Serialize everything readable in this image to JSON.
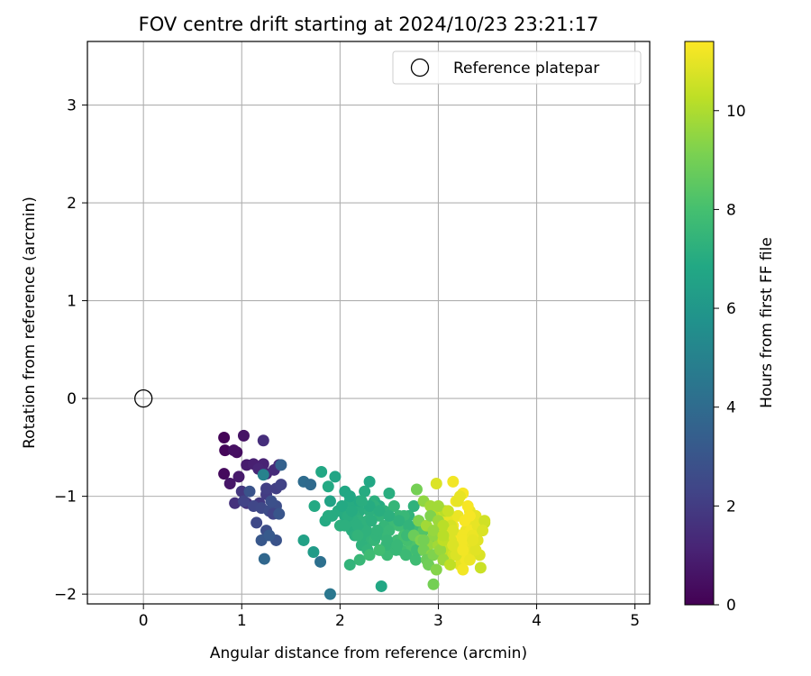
{
  "chart_data": {
    "type": "scatter",
    "title": "FOV centre drift starting at 2024/10/23 23:21:17",
    "xlabel": "Angular distance from reference (arcmin)",
    "ylabel": "Rotation from reference (arcmin)",
    "xlim": [
      -0.57,
      5.15
    ],
    "ylim": [
      -2.1,
      3.65
    ],
    "xticks": [
      0,
      1,
      2,
      3,
      4,
      5
    ],
    "yticks": [
      -2,
      -1,
      0,
      1,
      2,
      3
    ],
    "grid": true,
    "legend": {
      "placement": "top-right",
      "entries": [
        "Reference platepar"
      ]
    },
    "reference_point": {
      "x": 0,
      "y": 0
    },
    "colorbar": {
      "label": "Hours from first FF file",
      "colormap": "viridis",
      "range": [
        0,
        11.4
      ],
      "ticks": [
        0,
        2,
        4,
        6,
        8,
        10
      ]
    },
    "series": [
      {
        "x": [
          0.82,
          0.83,
          0.82,
          0.95,
          0.92,
          1.02,
          0.88,
          0.97,
          1.05,
          1.12,
          1.22,
          1.17,
          1.25,
          1.33,
          1.38,
          0.93,
          1.05,
          1.0,
          1.18,
          1.25,
          1.35,
          1.4,
          1.02,
          1.12,
          1.2,
          1.28,
          1.35,
          1.3,
          1.08,
          1.22,
          1.25,
          1.32,
          1.15,
          1.25,
          1.35,
          1.38,
          1.2,
          1.28,
          1.4,
          1.23
        ],
        "y": [
          -0.4,
          -0.53,
          -0.77,
          -0.55,
          -0.53,
          -0.38,
          -0.87,
          -0.8,
          -0.68,
          -0.67,
          -0.67,
          -0.72,
          -0.77,
          -0.73,
          -0.68,
          -1.07,
          -1.07,
          -0.95,
          -1.07,
          -0.98,
          -0.92,
          -0.88,
          -1.05,
          -1.1,
          -1.12,
          -1.15,
          -1.1,
          -1.05,
          -0.95,
          -0.43,
          -0.92,
          -1.18,
          -1.27,
          -1.35,
          -1.45,
          -1.18,
          -1.45,
          -1.4,
          -0.68,
          -1.64
        ],
        "hours": [
          0.1,
          0.2,
          0.3,
          0.4,
          0.5,
          0.6,
          0.7,
          0.8,
          0.9,
          1.0,
          1.1,
          1.2,
          1.3,
          1.4,
          1.5,
          1.6,
          1.7,
          1.8,
          1.9,
          2.0,
          2.1,
          2.2,
          2.3,
          2.4,
          2.5,
          2.6,
          2.7,
          2.8,
          2.9,
          1.5,
          2.1,
          2.3,
          2.5,
          2.7,
          2.9,
          3.0,
          3.1,
          3.2,
          3.5,
          3.8
        ]
      },
      {
        "x": [
          1.22,
          1.63,
          1.7,
          1.8,
          1.63,
          1.73,
          1.81,
          1.88,
          1.9,
          1.95,
          2.05,
          2.1,
          2.15,
          2.2,
          2.25,
          2.3,
          2.35,
          2.4,
          2.45,
          2.5,
          2.55,
          2.6,
          2.65,
          2.7,
          2.75,
          2.1,
          2.15,
          2.2,
          2.25,
          2.3,
          2.35,
          2.4,
          2.45,
          2.5,
          2.55,
          2.6,
          2.65,
          2.7,
          2.75,
          2.8,
          2.05,
          2.12,
          2.18,
          2.25,
          2.32,
          2.38,
          2.45,
          2.52,
          2.58,
          2.65,
          2.72,
          2.78,
          2.85,
          2.15,
          2.22,
          2.28,
          2.35,
          2.42,
          2.48,
          2.55,
          2.62,
          2.68,
          2.75,
          2.82,
          2.1,
          2.2,
          2.3,
          2.4,
          2.5,
          2.6,
          2.7,
          2.8,
          2.13,
          2.27,
          2.37,
          2.47,
          2.57,
          2.67,
          2.77,
          1.85,
          1.98,
          2.08,
          2.18,
          2.28,
          2.38,
          2.48,
          2.58,
          2.68,
          2.78,
          2.88,
          2.92,
          2.02,
          2.12,
          2.22,
          2.32,
          1.74,
          1.88,
          2.0,
          2.1,
          2.2,
          2.3,
          2.4,
          1.92,
          2.05,
          2.18,
          1.9,
          2.42,
          2.85
        ],
        "y": [
          -0.78,
          -0.85,
          -0.88,
          -1.67,
          -1.45,
          -1.57,
          -0.75,
          -0.9,
          -1.05,
          -0.8,
          -0.95,
          -1.0,
          -1.1,
          -1.15,
          -0.95,
          -0.85,
          -1.05,
          -1.1,
          -1.15,
          -0.97,
          -1.1,
          -1.2,
          -1.25,
          -1.2,
          -1.1,
          -1.05,
          -1.2,
          -1.25,
          -1.3,
          -1.15,
          -1.1,
          -1.2,
          -1.3,
          -1.35,
          -1.25,
          -1.3,
          -1.2,
          -1.35,
          -1.4,
          -1.3,
          -1.2,
          -1.35,
          -1.3,
          -1.4,
          -1.45,
          -1.35,
          -1.4,
          -1.5,
          -1.45,
          -1.4,
          -1.5,
          -1.45,
          -1.35,
          -1.4,
          -1.5,
          -1.55,
          -1.45,
          -1.55,
          -1.6,
          -1.5,
          -1.55,
          -1.45,
          -1.6,
          -1.55,
          -1.0,
          -1.05,
          -1.1,
          -1.15,
          -1.2,
          -1.25,
          -1.3,
          -1.25,
          -1.25,
          -1.35,
          -1.4,
          -1.5,
          -1.55,
          -1.6,
          -1.65,
          -1.25,
          -1.15,
          -1.2,
          -1.3,
          -1.25,
          -1.35,
          -1.45,
          -1.5,
          -1.4,
          -1.55,
          -1.5,
          -1.45,
          -1.1,
          -1.15,
          -1.05,
          -1.25,
          -1.1,
          -1.2,
          -1.3,
          -1.7,
          -1.65,
          -1.6,
          -1.55,
          -1.2,
          -1.3,
          -1.4,
          -2.0,
          -1.92,
          -1.55
        ],
        "hours": [
          5.0,
          4.0,
          3.9,
          4.2,
          6.5,
          6.2,
          6.8,
          6.9,
          6.6,
          6.7,
          6.8,
          6.9,
          7.0,
          7.1,
          7.0,
          6.8,
          7.2,
          7.0,
          7.3,
          7.1,
          7.5,
          7.6,
          7.5,
          7.4,
          7.3,
          7.0,
          7.2,
          7.3,
          7.4,
          7.2,
          7.3,
          7.4,
          7.5,
          7.6,
          7.7,
          7.8,
          7.6,
          7.5,
          7.7,
          7.8,
          7.0,
          7.1,
          7.2,
          7.3,
          7.4,
          7.5,
          7.6,
          7.7,
          7.8,
          8.0,
          8.1,
          8.2,
          8.3,
          7.2,
          7.3,
          7.4,
          7.5,
          7.6,
          7.7,
          7.8,
          7.9,
          8.0,
          8.1,
          8.2,
          6.8,
          6.9,
          7.0,
          7.1,
          7.2,
          7.3,
          7.4,
          7.5,
          7.2,
          7.3,
          7.4,
          7.5,
          7.6,
          7.7,
          7.8,
          6.9,
          7.0,
          7.1,
          7.2,
          7.3,
          7.4,
          7.5,
          7.6,
          7.7,
          7.8,
          8.4,
          8.5,
          6.9,
          7.0,
          7.1,
          7.2,
          6.9,
          7.0,
          7.2,
          7.4,
          7.6,
          7.8,
          7.9,
          7.0,
          7.2,
          7.4,
          4.5,
          6.8,
          8.6
        ]
      },
      {
        "x": [
          2.78,
          2.85,
          2.92,
          2.98,
          3.05,
          3.12,
          3.18,
          3.25,
          3.32,
          3.38,
          2.8,
          2.88,
          2.95,
          3.02,
          3.08,
          3.15,
          3.22,
          3.28,
          3.35,
          3.42,
          2.75,
          2.82,
          2.9,
          2.97,
          3.03,
          3.1,
          3.17,
          3.23,
          3.3,
          3.37,
          2.85,
          2.93,
          3.0,
          3.07,
          3.13,
          3.2,
          3.27,
          3.33,
          3.4,
          3.47,
          2.88,
          2.95,
          3.02,
          3.08,
          3.15,
          3.22,
          3.28,
          3.35,
          3.42,
          2.9,
          2.98,
          3.05,
          3.12,
          3.18,
          3.25,
          3.32,
          3.38,
          2.92,
          3.0,
          3.07,
          3.13,
          3.2,
          3.27,
          3.33,
          3.4,
          3.47,
          3.0,
          3.1,
          3.2,
          3.3,
          3.05,
          3.15,
          3.25,
          2.95,
          3.05,
          3.15,
          3.25,
          3.35,
          3.45,
          2.95,
          3.15,
          3.22,
          2.85,
          2.95,
          3.05,
          3.15,
          3.25,
          3.35,
          3.43,
          3.32
        ],
        "y": [
          -0.93,
          -1.05,
          -1.1,
          -0.87,
          -1.15,
          -1.2,
          -1.05,
          -0.97,
          -1.15,
          -1.2,
          -1.25,
          -1.3,
          -1.2,
          -1.35,
          -1.25,
          -1.3,
          -1.4,
          -1.35,
          -1.25,
          -1.3,
          -1.4,
          -1.45,
          -1.5,
          -1.4,
          -1.45,
          -1.35,
          -1.5,
          -1.45,
          -1.4,
          -1.35,
          -1.55,
          -1.6,
          -1.5,
          -1.55,
          -1.45,
          -1.6,
          -1.55,
          -1.5,
          -1.45,
          -1.27,
          -1.65,
          -1.6,
          -1.55,
          -1.65,
          -1.6,
          -1.7,
          -1.65,
          -1.55,
          -1.6,
          -1.7,
          -1.75,
          -1.65,
          -1.7,
          -1.6,
          -1.75,
          -1.65,
          -1.55,
          -1.2,
          -1.25,
          -1.15,
          -1.3,
          -1.2,
          -1.25,
          -1.35,
          -1.3,
          -1.25,
          -1.1,
          -1.15,
          -1.05,
          -1.1,
          -1.3,
          -1.35,
          -1.4,
          -1.4,
          -1.45,
          -1.5,
          -1.45,
          -1.4,
          -1.35,
          -1.9,
          -0.85,
          -1.0,
          -1.45,
          -1.35,
          -1.4,
          -1.5,
          -1.55,
          -1.45,
          -1.73,
          -1.2
        ],
        "hours": [
          9.0,
          9.5,
          9.8,
          10.8,
          10.5,
          11.0,
          11.2,
          11.3,
          11.1,
          11.0,
          9.2,
          9.8,
          10.2,
          10.8,
          11.0,
          11.2,
          11.3,
          11.1,
          11.0,
          10.8,
          8.8,
          9.2,
          9.6,
          10.2,
          10.6,
          11.0,
          11.2,
          11.3,
          11.2,
          11.0,
          9.0,
          9.4,
          9.8,
          10.4,
          10.8,
          11.2,
          11.3,
          11.1,
          10.9,
          10.4,
          8.8,
          9.2,
          9.6,
          10.0,
          10.6,
          11.0,
          11.2,
          11.0,
          10.8,
          8.9,
          9.3,
          9.7,
          10.3,
          10.8,
          11.2,
          11.1,
          10.9,
          9.2,
          9.7,
          10.2,
          10.7,
          11.1,
          11.3,
          11.2,
          11.0,
          10.6,
          9.8,
          10.5,
          11.0,
          11.3,
          10.2,
          10.8,
          11.2,
          9.5,
          10.3,
          10.9,
          11.2,
          11.1,
          10.8,
          9.0,
          11.2,
          11.0,
          9.0,
          9.6,
          10.2,
          10.8,
          11.2,
          11.0,
          10.5,
          11.3
        ]
      }
    ]
  }
}
